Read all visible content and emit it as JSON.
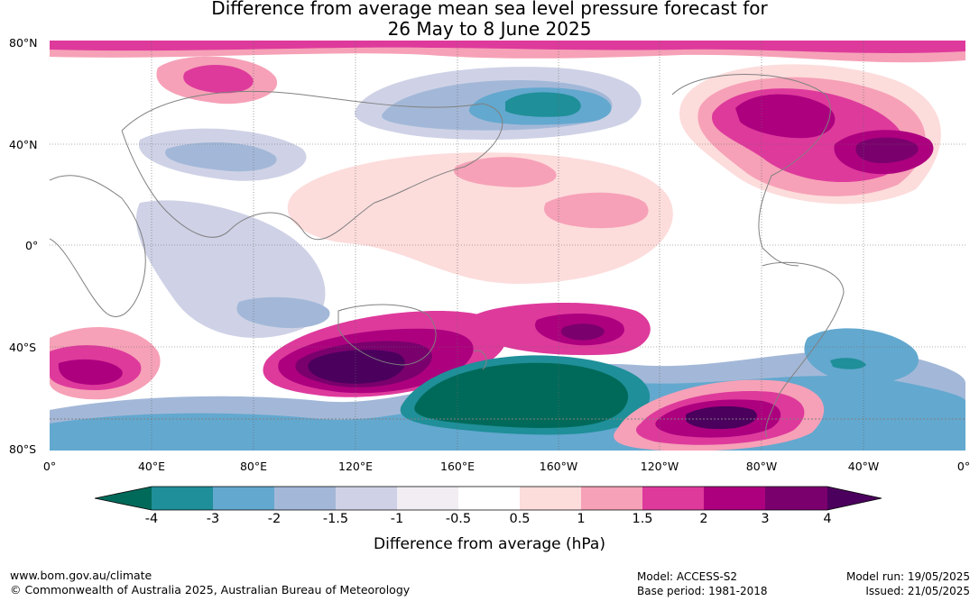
{
  "title_line1": "Difference from average mean sea level pressure forecast for",
  "title_line2": "26 May to 8 June 2025",
  "lat_labels": [
    "80°N",
    "40°N",
    "0°",
    "40°S",
    "80°S"
  ],
  "lon_labels": [
    "0°",
    "40°E",
    "80°E",
    "120°E",
    "160°E",
    "160°W",
    "120°W",
    "80°W",
    "40°W",
    "0°"
  ],
  "legend": {
    "ticks": [
      "-4",
      "-3",
      "-2",
      "-1.5",
      "-1",
      "-0.5",
      "0.5",
      "1",
      "1.5",
      "2",
      "3",
      "4"
    ],
    "colors": [
      "#006a5a",
      "#1f8f99",
      "#63a8cf",
      "#a3b8d8",
      "#cfd2e6",
      "#f1edf3",
      "#ffffff",
      "#fddcdc",
      "#f6a1b7",
      "#de3a9c",
      "#ad007f",
      "#7a006e",
      "#4b005e"
    ],
    "label": "Difference from average (hPa)"
  },
  "footer": {
    "url": "www.bom.gov.au/climate",
    "copyright": "© Commonwealth of Australia 2025, Australian Bureau of Meteorology",
    "model": "Model: ACCESS-S2",
    "base_period": "Base period: 1981-2018",
    "model_run": "Model run: 19/05/2025",
    "issued": "Issued: 21/05/2025"
  }
}
